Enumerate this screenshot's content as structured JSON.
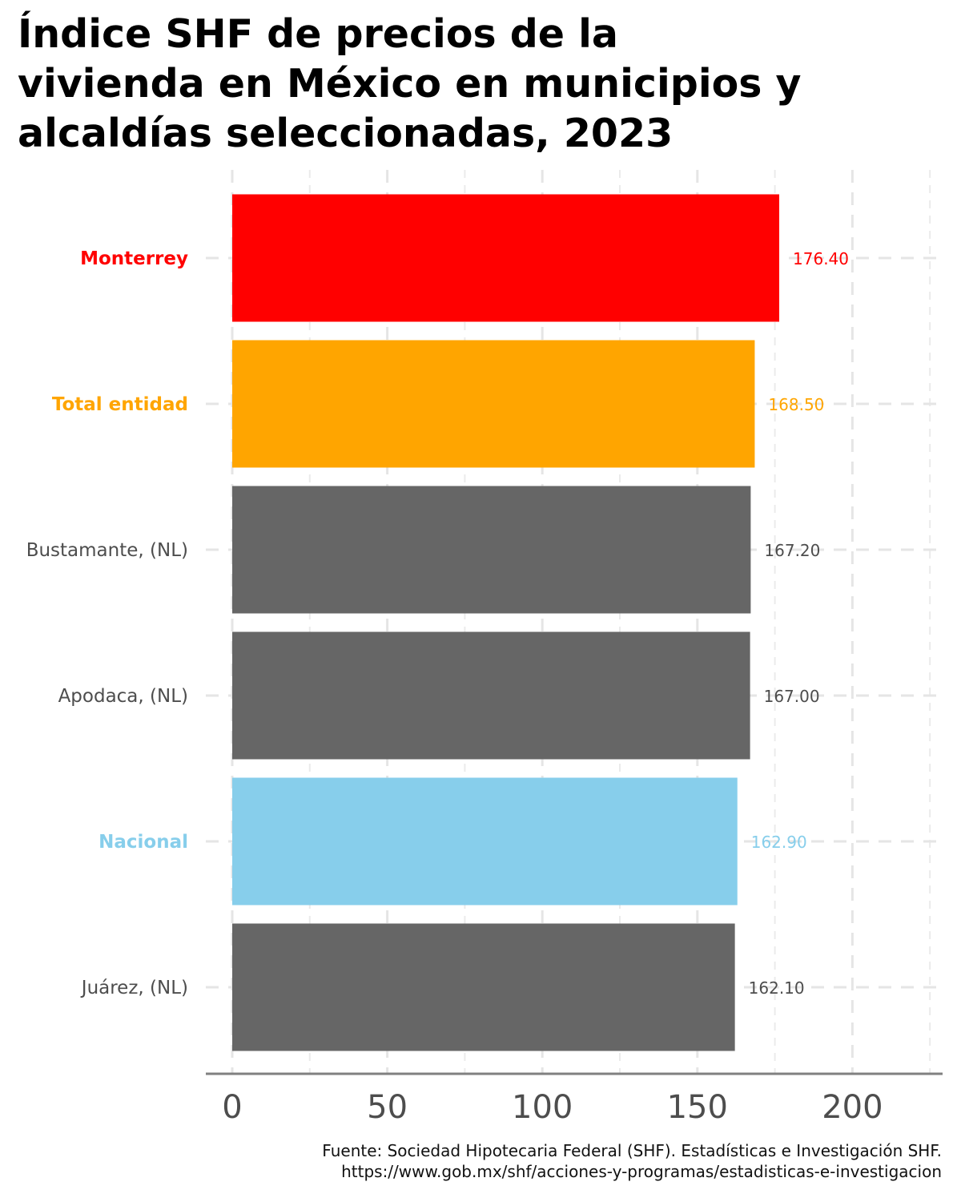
{
  "chart_data": {
    "type": "bar",
    "orientation": "horizontal",
    "title": "Índice SHF de precios de la vivienda en México en municipios y alcaldías seleccionadas, 2023",
    "title_lines": [
      "Índice SHF de precios de la",
      "vivienda en México en municipios y",
      "alcaldías seleccionadas, 2023"
    ],
    "categories": [
      "Monterrey",
      "Total entidad",
      "Bustamante, (NL)",
      "Apodaca, (NL)",
      "Nacional",
      "Juárez, (NL)"
    ],
    "values": [
      176.4,
      168.5,
      167.2,
      167.0,
      162.9,
      162.1
    ],
    "value_labels": [
      "176.40",
      "168.50",
      "167.20",
      "167.00",
      "162.90",
      "162.10"
    ],
    "colors": [
      "#FF0000",
      "#FFA500",
      "#666666",
      "#666666",
      "#87CEEB",
      "#666666"
    ],
    "label_highlight": [
      true,
      true,
      false,
      false,
      true,
      false
    ],
    "label_colors": [
      "#FF0000",
      "#FFA500",
      "#4D4D4D",
      "#4D4D4D",
      "#87CEEB",
      "#4D4D4D"
    ],
    "x_ticks": [
      0,
      50,
      100,
      150,
      200
    ],
    "x_tick_labels": [
      "0",
      "50",
      "100",
      "150",
      "200"
    ],
    "xlim": [
      -8.5,
      229
    ],
    "xlabel": "",
    "ylabel": "",
    "grid": true,
    "legend": "none",
    "caption_lines": [
      "Fuente: Sociedad Hipotecaria Federal (SHF). Estadísticas e Investigación SHF.",
      "https://www.gob.mx/shf/acciones-y-programas/estadisticas-e-investigacion"
    ]
  }
}
